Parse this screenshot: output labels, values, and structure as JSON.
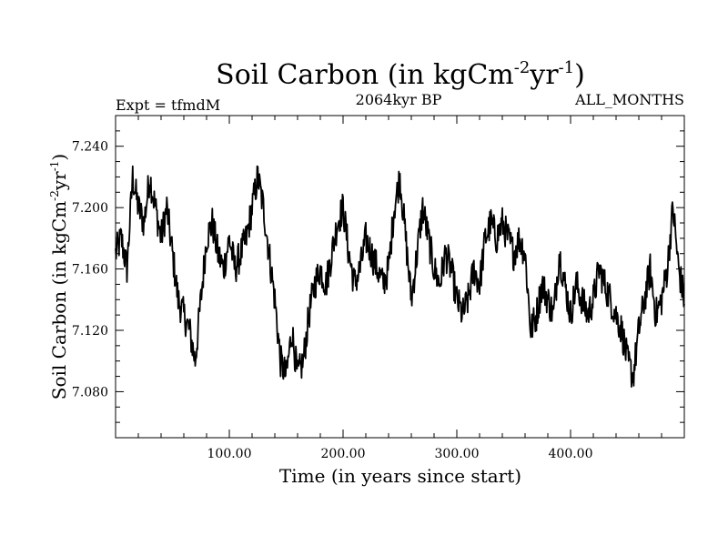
{
  "header": {
    "title_main": "Soil Carbon (in kgCm",
    "title_exp1": "-2",
    "title_mid": "yr",
    "title_exp2": "-1",
    "title_end": ")",
    "expt_label": "Expt = tfmdM",
    "period_label": "2064kyr BP",
    "months_label": "ALL_MONTHS"
  },
  "chart_data": {
    "type": "line",
    "xlabel": "Time (in years since start)",
    "ylabel_main": "Soil Carbon (in kgCm",
    "ylabel_exp1": "-2",
    "ylabel_mid": "yr",
    "ylabel_exp2": "-1",
    "ylabel_end": ")",
    "xlim": [
      0,
      500
    ],
    "ylim": [
      7.05,
      7.26
    ],
    "xticks": [
      100,
      200,
      300,
      400
    ],
    "xtick_labels": [
      "100.00",
      "200.00",
      "300.00",
      "400.00"
    ],
    "yticks": [
      7.08,
      7.12,
      7.16,
      7.2,
      7.24
    ],
    "ytick_labels": [
      "7.080",
      "7.120",
      "7.160",
      "7.200",
      "7.240"
    ],
    "series": [
      {
        "color": "#000000",
        "x": [
          0,
          5,
          10,
          15,
          20,
          25,
          30,
          35,
          40,
          45,
          50,
          55,
          60,
          65,
          70,
          75,
          80,
          85,
          90,
          95,
          100,
          105,
          110,
          115,
          120,
          125,
          130,
          135,
          140,
          145,
          150,
          155,
          160,
          165,
          170,
          175,
          180,
          185,
          190,
          195,
          200,
          205,
          210,
          215,
          220,
          225,
          230,
          235,
          240,
          245,
          250,
          255,
          260,
          265,
          270,
          275,
          280,
          285,
          290,
          295,
          300,
          305,
          310,
          315,
          320,
          325,
          330,
          335,
          340,
          345,
          350,
          355,
          360,
          365,
          370,
          375,
          380,
          385,
          390,
          395,
          400,
          405,
          410,
          415,
          420,
          425,
          430,
          435,
          440,
          445,
          450,
          455,
          460,
          465,
          470,
          475,
          480,
          485,
          490,
          495,
          500
        ],
        "y": [
          7.17,
          7.18,
          7.16,
          7.22,
          7.2,
          7.19,
          7.22,
          7.2,
          7.18,
          7.2,
          7.17,
          7.14,
          7.13,
          7.12,
          7.1,
          7.14,
          7.18,
          7.19,
          7.17,
          7.16,
          7.18,
          7.16,
          7.17,
          7.18,
          7.2,
          7.22,
          7.2,
          7.17,
          7.14,
          7.1,
          7.09,
          7.12,
          7.09,
          7.1,
          7.13,
          7.15,
          7.16,
          7.15,
          7.17,
          7.19,
          7.2,
          7.17,
          7.15,
          7.16,
          7.18,
          7.17,
          7.16,
          7.15,
          7.16,
          7.2,
          7.22,
          7.18,
          7.14,
          7.17,
          7.2,
          7.18,
          7.16,
          7.15,
          7.17,
          7.16,
          7.14,
          7.13,
          7.14,
          7.16,
          7.15,
          7.18,
          7.19,
          7.18,
          7.19,
          7.18,
          7.17,
          7.18,
          7.17,
          7.12,
          7.13,
          7.15,
          7.14,
          7.13,
          7.17,
          7.15,
          7.13,
          7.15,
          7.14,
          7.13,
          7.14,
          7.16,
          7.15,
          7.14,
          7.13,
          7.12,
          7.1,
          7.09,
          7.12,
          7.14,
          7.16,
          7.13,
          7.14,
          7.16,
          7.2,
          7.16,
          7.14
        ]
      }
    ],
    "grid": false
  }
}
